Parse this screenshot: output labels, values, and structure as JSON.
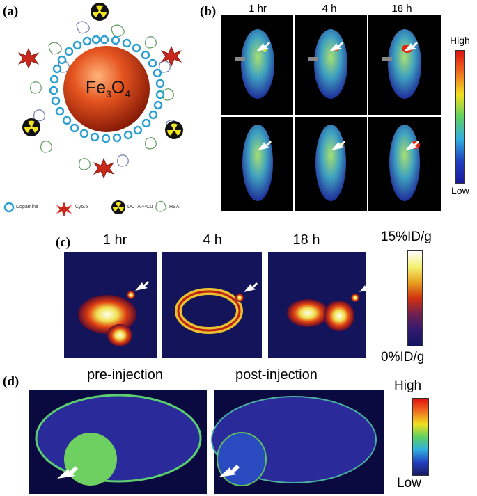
{
  "panels": {
    "a": {
      "label": "(a)",
      "core_formula_main": "Fe",
      "core_sub1": "3",
      "core_mid": "O",
      "core_sub2": "4",
      "legend": [
        "Dopamine",
        "Cy5.5",
        "DOTA-⁶⁴Cu",
        "HSA"
      ]
    },
    "b": {
      "label": "(b)",
      "times": [
        "1 hr",
        "4 h",
        "18 h"
      ],
      "scale_high": "High",
      "scale_low": "Low"
    },
    "c": {
      "label": "(c)",
      "times": [
        "1 hr",
        "4 h",
        "18 h"
      ],
      "scale_high": "15%ID/g",
      "scale_low": "0%ID/g"
    },
    "d": {
      "label": "(d)",
      "headings": [
        "pre-injection",
        "post-injection"
      ],
      "scale_high": "High",
      "scale_low": "Low"
    }
  },
  "colors": {
    "core_fill": "#d8431c",
    "dopamine_ring": "#2b9fd0",
    "cy55": "#c8281c",
    "radio": "#f0e320",
    "hsa": "#5a9a6a",
    "mouse_blue": "#1f2f9a",
    "mouse_green": "#8fd45a",
    "pet_bg": "#14145a",
    "mri_bg": "#1a1a7a"
  }
}
